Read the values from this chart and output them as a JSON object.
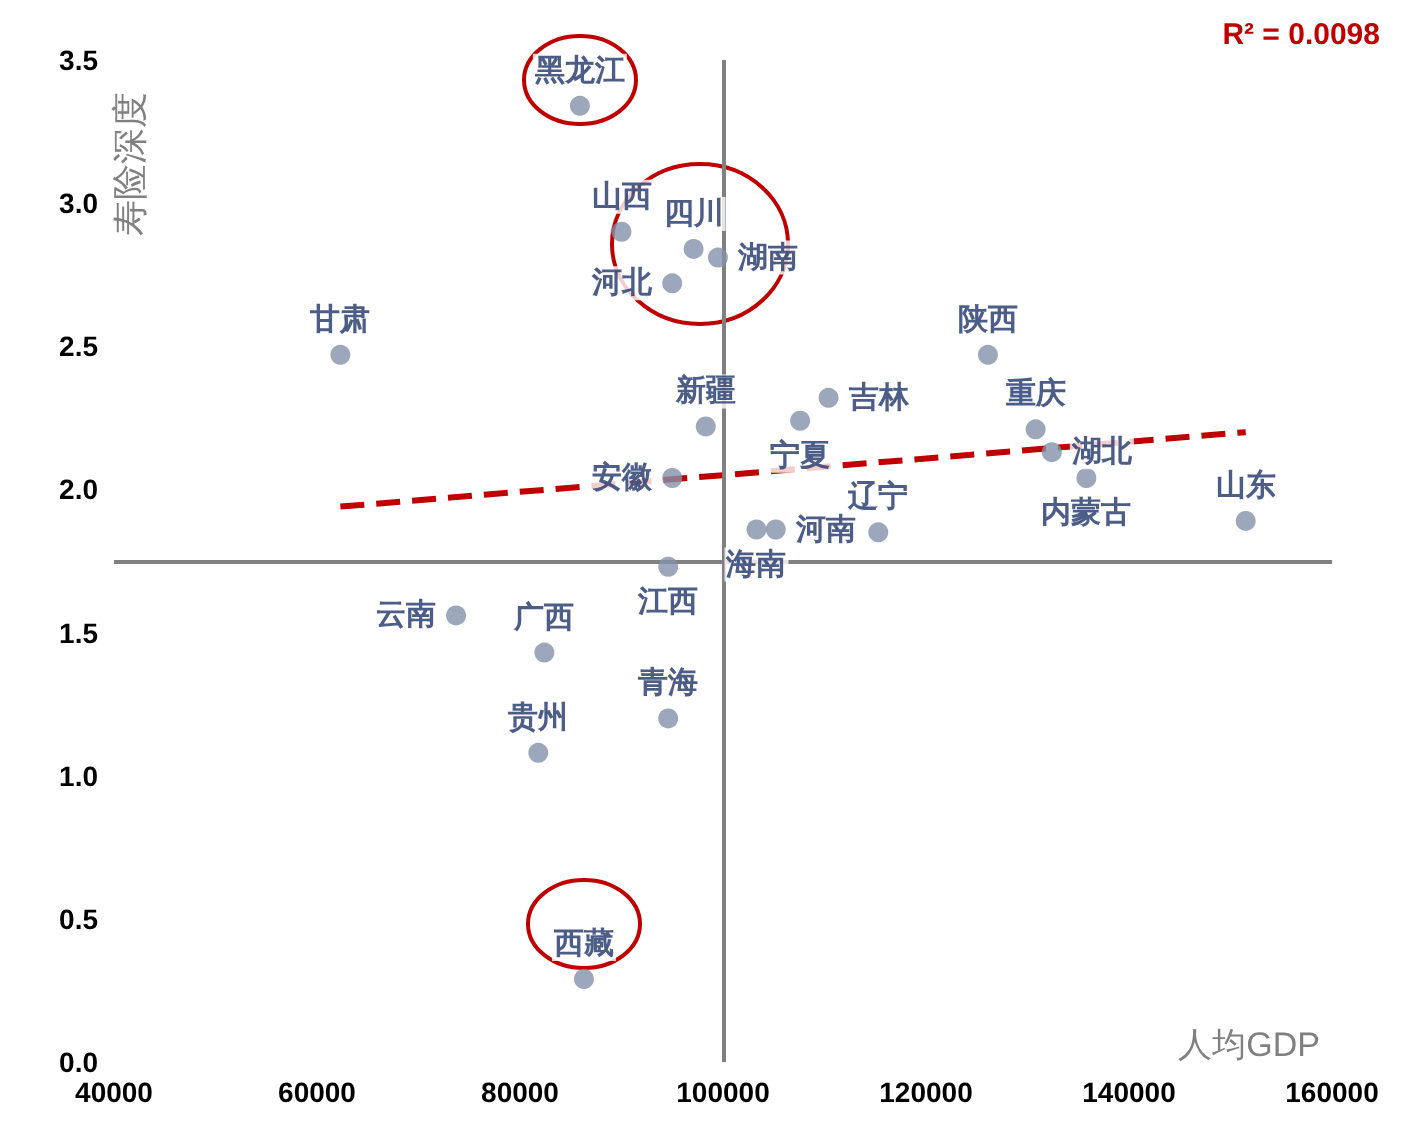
{
  "chart_data": {
    "type": "scatter",
    "xlabel": "人均GDP",
    "ylabel": "寿险深度",
    "annotations": [
      "R² = 0.0098"
    ],
    "xlim": [
      40000,
      160000
    ],
    "xticks": [
      40000,
      60000,
      80000,
      100000,
      120000,
      140000,
      160000
    ],
    "ylim": [
      0,
      3.5
    ],
    "yticks": [
      {
        "value": 0,
        "label": "0.0"
      },
      {
        "value": 0.5,
        "label": "0.5"
      },
      {
        "value": 1,
        "label": "1.0"
      },
      {
        "value": 1.5,
        "label": "1.5"
      },
      {
        "value": 2,
        "label": "2.0"
      },
      {
        "value": 2.5,
        "label": "2.5"
      },
      {
        "value": 3,
        "label": "3.0"
      },
      {
        "value": 3.5,
        "label": "3.5"
      }
    ],
    "grid": false,
    "legend": false,
    "marker": "circle",
    "ref_lines": [
      {
        "axis": "x",
        "value": 100000,
        "color": "#808080"
      },
      {
        "axis": "y",
        "value": 1.75,
        "color": "#808080"
      }
    ],
    "series": [
      {
        "name": "黑龙江",
        "color": "#8591ab",
        "x": [
          85900
        ],
        "values": [
          3.34
        ]
      },
      {
        "name": "山西",
        "color": "#8591ab",
        "x": [
          90000
        ],
        "values": [
          2.9
        ]
      },
      {
        "name": "四川",
        "color": "#8591ab",
        "x": [
          97100
        ],
        "values": [
          2.84
        ]
      },
      {
        "name": "湖南",
        "color": "#8591ab",
        "x": [
          99500
        ],
        "values": [
          2.81
        ]
      },
      {
        "name": "河北",
        "color": "#8591ab",
        "x": [
          95000
        ],
        "values": [
          2.72
        ]
      },
      {
        "name": "甘肃",
        "color": "#8591ab",
        "x": [
          62300
        ],
        "values": [
          2.47
        ]
      },
      {
        "name": "新疆",
        "color": "#8591ab",
        "x": [
          98300
        ],
        "values": [
          2.22
        ]
      },
      {
        "name": "安徽",
        "color": "#8591ab",
        "x": [
          95000
        ],
        "values": [
          2.04
        ]
      },
      {
        "name": "江西",
        "color": "#8591ab",
        "x": [
          94600
        ],
        "values": [
          1.73
        ]
      },
      {
        "name": "海南",
        "color": "#8591ab",
        "x": [
          103300
        ],
        "values": [
          1.86
        ]
      },
      {
        "name": "河南",
        "color": "#8591ab",
        "x": [
          105200
        ],
        "values": [
          1.86
        ]
      },
      {
        "name": "宁夏",
        "color": "#8591ab",
        "x": [
          107600
        ],
        "values": [
          2.24
        ]
      },
      {
        "name": "吉林",
        "color": "#8591ab",
        "x": [
          110400
        ],
        "values": [
          2.32
        ]
      },
      {
        "name": "辽宁",
        "color": "#8591ab",
        "x": [
          115300
        ],
        "values": [
          1.85
        ]
      },
      {
        "name": "陕西",
        "color": "#8591ab",
        "x": [
          126100
        ],
        "values": [
          2.47
        ]
      },
      {
        "name": "重庆",
        "color": "#8591ab",
        "x": [
          130800
        ],
        "values": [
          2.21
        ]
      },
      {
        "name": "湖北",
        "color": "#8591ab",
        "x": [
          132400
        ],
        "values": [
          2.13
        ]
      },
      {
        "name": "内蒙古",
        "color": "#8591ab",
        "x": [
          135800
        ],
        "values": [
          2.04
        ]
      },
      {
        "name": "山东",
        "color": "#8591ab",
        "x": [
          151500
        ],
        "values": [
          1.89
        ]
      },
      {
        "name": "云南",
        "color": "#8591ab",
        "x": [
          73700
        ],
        "values": [
          1.56
        ]
      },
      {
        "name": "广西",
        "color": "#8591ab",
        "x": [
          82400
        ],
        "values": [
          1.43
        ]
      },
      {
        "name": "贵州",
        "color": "#8591ab",
        "x": [
          81800
        ],
        "values": [
          1.08
        ]
      },
      {
        "name": "青海",
        "color": "#8591ab",
        "x": [
          94600
        ],
        "values": [
          1.2
        ]
      },
      {
        "name": "西藏",
        "color": "#8591ab",
        "x": [
          86300
        ],
        "values": [
          0.29
        ]
      },
      {
        "type": "line",
        "color": "#c00000",
        "line_style": "dashed",
        "marker": "none",
        "x": [
          62300,
          151500
        ],
        "values": [
          1.94,
          2.2
        ]
      }
    ]
  }
}
